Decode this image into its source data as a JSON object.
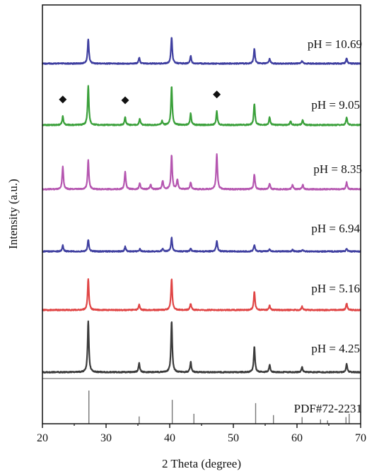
{
  "chart_data": {
    "type": "line",
    "title": "",
    "xlabel": "2 Theta (degree)",
    "ylabel": "Intensity (a.u.)",
    "xlim": [
      20,
      70
    ],
    "xticks": [
      20,
      30,
      40,
      50,
      60,
      70
    ],
    "grid": false,
    "series": [
      {
        "name": "pH = 10.69",
        "color": "#3f3fa0",
        "peaks": [
          [
            27.2,
            0.92
          ],
          [
            35.2,
            0.22
          ],
          [
            40.3,
            1.0
          ],
          [
            43.3,
            0.28
          ],
          [
            53.3,
            0.55
          ],
          [
            55.7,
            0.18
          ],
          [
            60.8,
            0.1
          ],
          [
            67.8,
            0.2
          ]
        ]
      },
      {
        "name": "pH = 9.05",
        "color": "#3aa03a",
        "peaks": [
          [
            23.2,
            0.22
          ],
          [
            27.2,
            1.0
          ],
          [
            33.0,
            0.2
          ],
          [
            35.3,
            0.16
          ],
          [
            38.8,
            0.1
          ],
          [
            40.3,
            1.0
          ],
          [
            43.3,
            0.3
          ],
          [
            47.4,
            0.35
          ],
          [
            53.3,
            0.55
          ],
          [
            55.7,
            0.2
          ],
          [
            59.0,
            0.1
          ],
          [
            60.9,
            0.12
          ],
          [
            67.8,
            0.2
          ]
        ],
        "markers": [
          23.2,
          33.0,
          47.4
        ]
      },
      {
        "name": "pH = 8.35",
        "color": "#b556b0",
        "peaks": [
          [
            23.2,
            0.58
          ],
          [
            27.2,
            0.75
          ],
          [
            33.0,
            0.45
          ],
          [
            35.3,
            0.15
          ],
          [
            37.0,
            0.12
          ],
          [
            38.9,
            0.22
          ],
          [
            40.3,
            0.88
          ],
          [
            41.2,
            0.25
          ],
          [
            43.3,
            0.18
          ],
          [
            47.4,
            0.9
          ],
          [
            53.3,
            0.38
          ],
          [
            55.7,
            0.15
          ],
          [
            59.3,
            0.12
          ],
          [
            60.9,
            0.12
          ],
          [
            67.8,
            0.18
          ]
        ]
      },
      {
        "name": "pH = 6.94",
        "color": "#3f3fa0",
        "peaks": [
          [
            23.2,
            0.28
          ],
          [
            27.2,
            0.55
          ],
          [
            33.0,
            0.22
          ],
          [
            35.3,
            0.12
          ],
          [
            38.9,
            0.12
          ],
          [
            40.3,
            0.65
          ],
          [
            43.3,
            0.14
          ],
          [
            47.4,
            0.5
          ],
          [
            53.3,
            0.32
          ],
          [
            55.7,
            0.1
          ],
          [
            59.3,
            0.08
          ],
          [
            60.9,
            0.08
          ],
          [
            67.8,
            0.12
          ]
        ]
      },
      {
        "name": "pH = 5.16",
        "color": "#e04545",
        "peaks": [
          [
            27.2,
            0.85
          ],
          [
            35.2,
            0.15
          ],
          [
            40.3,
            0.85
          ],
          [
            43.3,
            0.18
          ],
          [
            53.3,
            0.5
          ],
          [
            55.7,
            0.12
          ],
          [
            60.8,
            0.1
          ],
          [
            67.8,
            0.18
          ]
        ]
      },
      {
        "name": "pH = 4.25",
        "color": "#3b3b3b",
        "peaks": [
          [
            27.2,
            1.0
          ],
          [
            35.2,
            0.18
          ],
          [
            40.3,
            1.0
          ],
          [
            43.3,
            0.2
          ],
          [
            53.3,
            0.5
          ],
          [
            55.7,
            0.15
          ],
          [
            60.8,
            0.1
          ],
          [
            67.8,
            0.16
          ]
        ]
      }
    ],
    "reference": {
      "name": "PDF#72-2231",
      "color": "#777777",
      "lines": [
        [
          27.3,
          1.0
        ],
        [
          35.2,
          0.22
        ],
        [
          40.4,
          0.72
        ],
        [
          43.8,
          0.3
        ],
        [
          53.5,
          0.62
        ],
        [
          56.3,
          0.26
        ],
        [
          60.8,
          0.2
        ],
        [
          63.7,
          0.13
        ],
        [
          64.8,
          0.1
        ],
        [
          67.7,
          0.2
        ],
        [
          68.2,
          0.3
        ]
      ]
    }
  }
}
